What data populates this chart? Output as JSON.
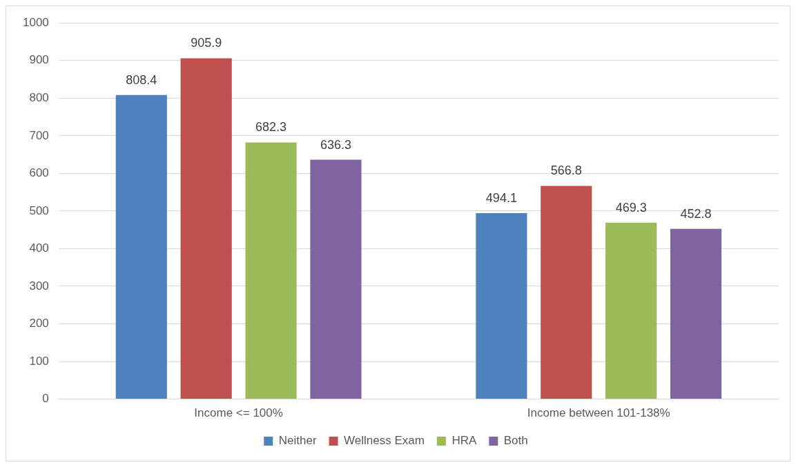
{
  "chart_data": {
    "type": "bar",
    "categories": [
      "Income <= 100%",
      "Income between 101-138%"
    ],
    "series": [
      {
        "name": "Neither",
        "color": "#4f81bd",
        "values": [
          808.4,
          494.1
        ]
      },
      {
        "name": "Wellness Exam",
        "color": "#c0504d",
        "values": [
          905.9,
          566.8
        ]
      },
      {
        "name": "HRA",
        "color": "#9bbb59",
        "values": [
          682.3,
          469.3
        ]
      },
      {
        "name": "Both",
        "color": "#8064a2",
        "values": [
          636.3,
          452.8
        ]
      }
    ],
    "ylim": [
      0,
      1000
    ],
    "yticks": [
      0,
      100,
      200,
      300,
      400,
      500,
      600,
      700,
      800,
      900,
      1000
    ],
    "grid": "y",
    "legend": "bottom",
    "data_labels": true
  }
}
